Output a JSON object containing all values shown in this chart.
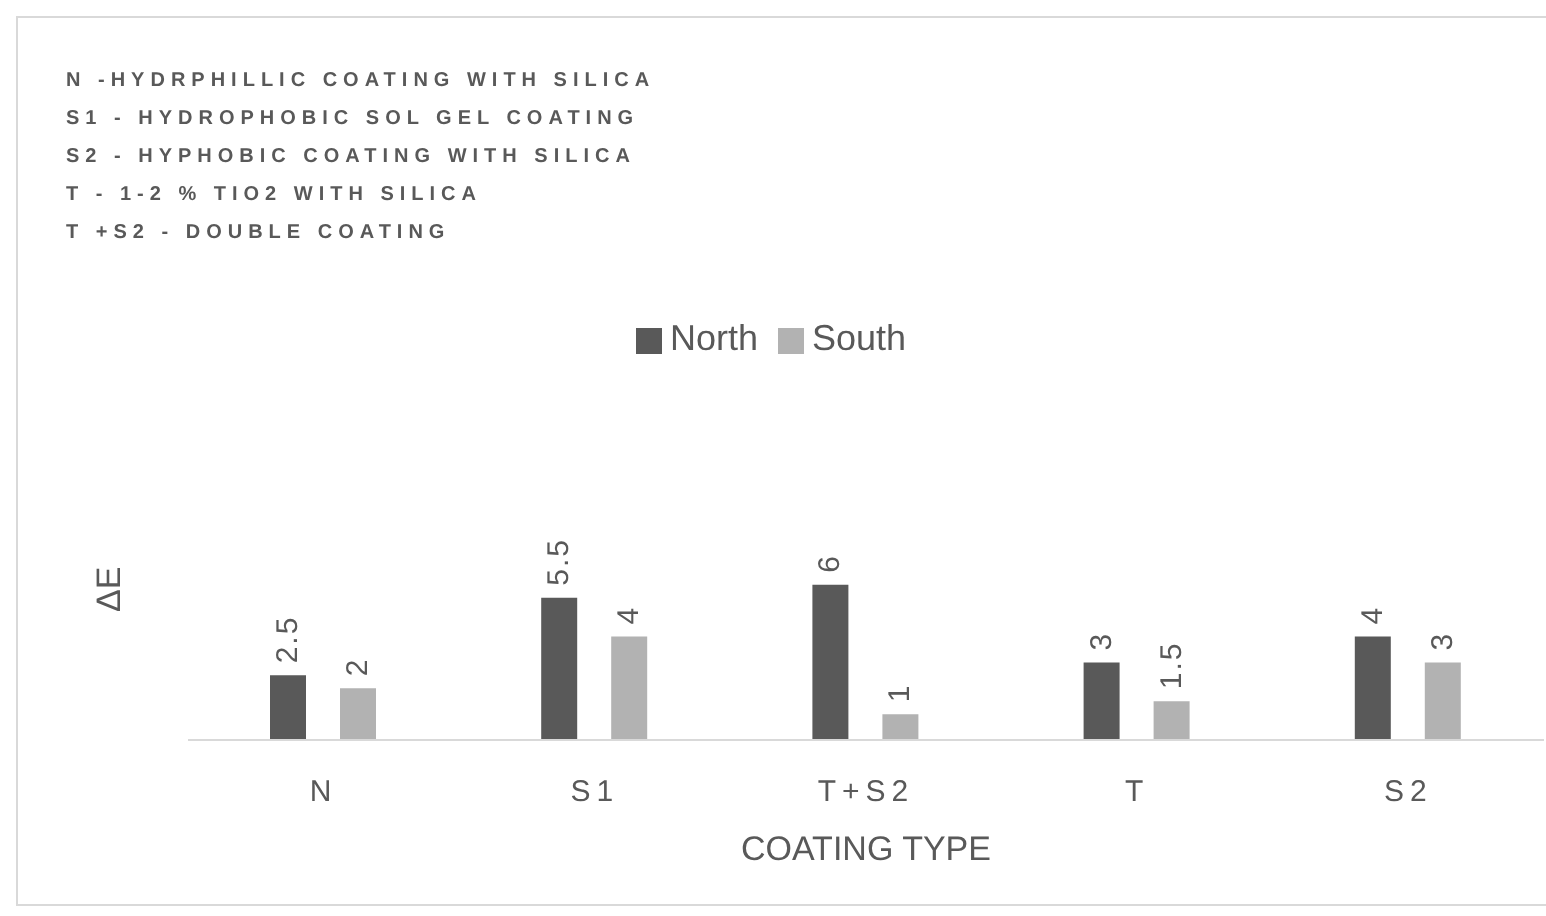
{
  "chart_data": {
    "type": "bar",
    "title": "N -HYDRPHILLIC COATING WITH SILICA\nS1 - HYDROPHOBIC SOL GEL COATING\nS2 - HYPHOBIC COATING WITH SILICA\nT - 1-2 % TIO2 WITH SILICA\nT +S2 - DOUBLE COATING",
    "xlabel": "COATING TYPE",
    "ylabel": "ΔE",
    "categories": [
      "N",
      "S1",
      "T+S2",
      "T",
      "S2"
    ],
    "series": [
      {
        "name": "North",
        "color": "#595959",
        "values": [
          2.5,
          5.5,
          6,
          3,
          4
        ]
      },
      {
        "name": "South",
        "color": "#b2b2b2",
        "values": [
          2,
          4,
          1,
          1.5,
          3
        ]
      }
    ],
    "data_labels": true,
    "legend": "top",
    "grid": false
  }
}
